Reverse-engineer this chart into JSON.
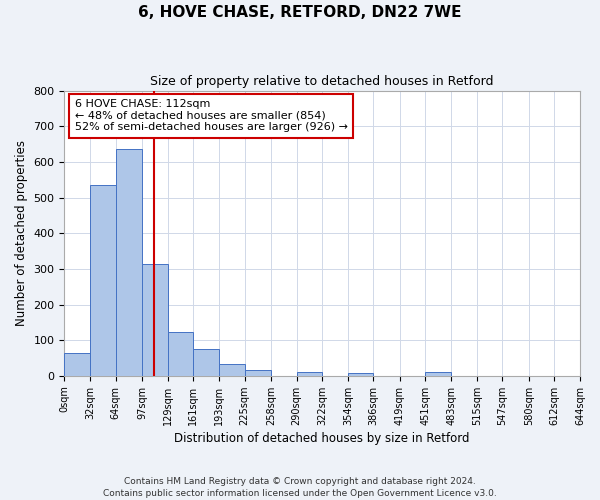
{
  "title": "6, HOVE CHASE, RETFORD, DN22 7WE",
  "subtitle": "Size of property relative to detached houses in Retford",
  "xlabel": "Distribution of detached houses by size in Retford",
  "ylabel": "Number of detached properties",
  "bar_edges": [
    0,
    32,
    64,
    97,
    129,
    161,
    193,
    225,
    258,
    290,
    322,
    354,
    386,
    419,
    451,
    483,
    515,
    547,
    580,
    612,
    644
  ],
  "bar_heights": [
    65,
    535,
    637,
    315,
    122,
    76,
    32,
    15,
    0,
    12,
    0,
    8,
    0,
    0,
    10,
    0,
    0,
    0,
    0,
    0
  ],
  "bar_color": "#aec6e8",
  "bar_edge_color": "#4472c4",
  "vline_x": 112,
  "vline_color": "#cc0000",
  "annotation_text": "6 HOVE CHASE: 112sqm\n← 48% of detached houses are smaller (854)\n52% of semi-detached houses are larger (926) →",
  "annotation_box_color": "#cc0000",
  "ylim": [
    0,
    800
  ],
  "yticks": [
    0,
    100,
    200,
    300,
    400,
    500,
    600,
    700,
    800
  ],
  "tick_labels": [
    "0sqm",
    "32sqm",
    "64sqm",
    "97sqm",
    "129sqm",
    "161sqm",
    "193sqm",
    "225sqm",
    "258sqm",
    "290sqm",
    "322sqm",
    "354sqm",
    "386sqm",
    "419sqm",
    "451sqm",
    "483sqm",
    "515sqm",
    "547sqm",
    "580sqm",
    "612sqm",
    "644sqm"
  ],
  "footer_text": "Contains HM Land Registry data © Crown copyright and database right 2024.\nContains public sector information licensed under the Open Government Licence v3.0.",
  "background_color": "#eef2f8",
  "plot_bg_color": "#ffffff",
  "grid_color": "#d0d8e8"
}
